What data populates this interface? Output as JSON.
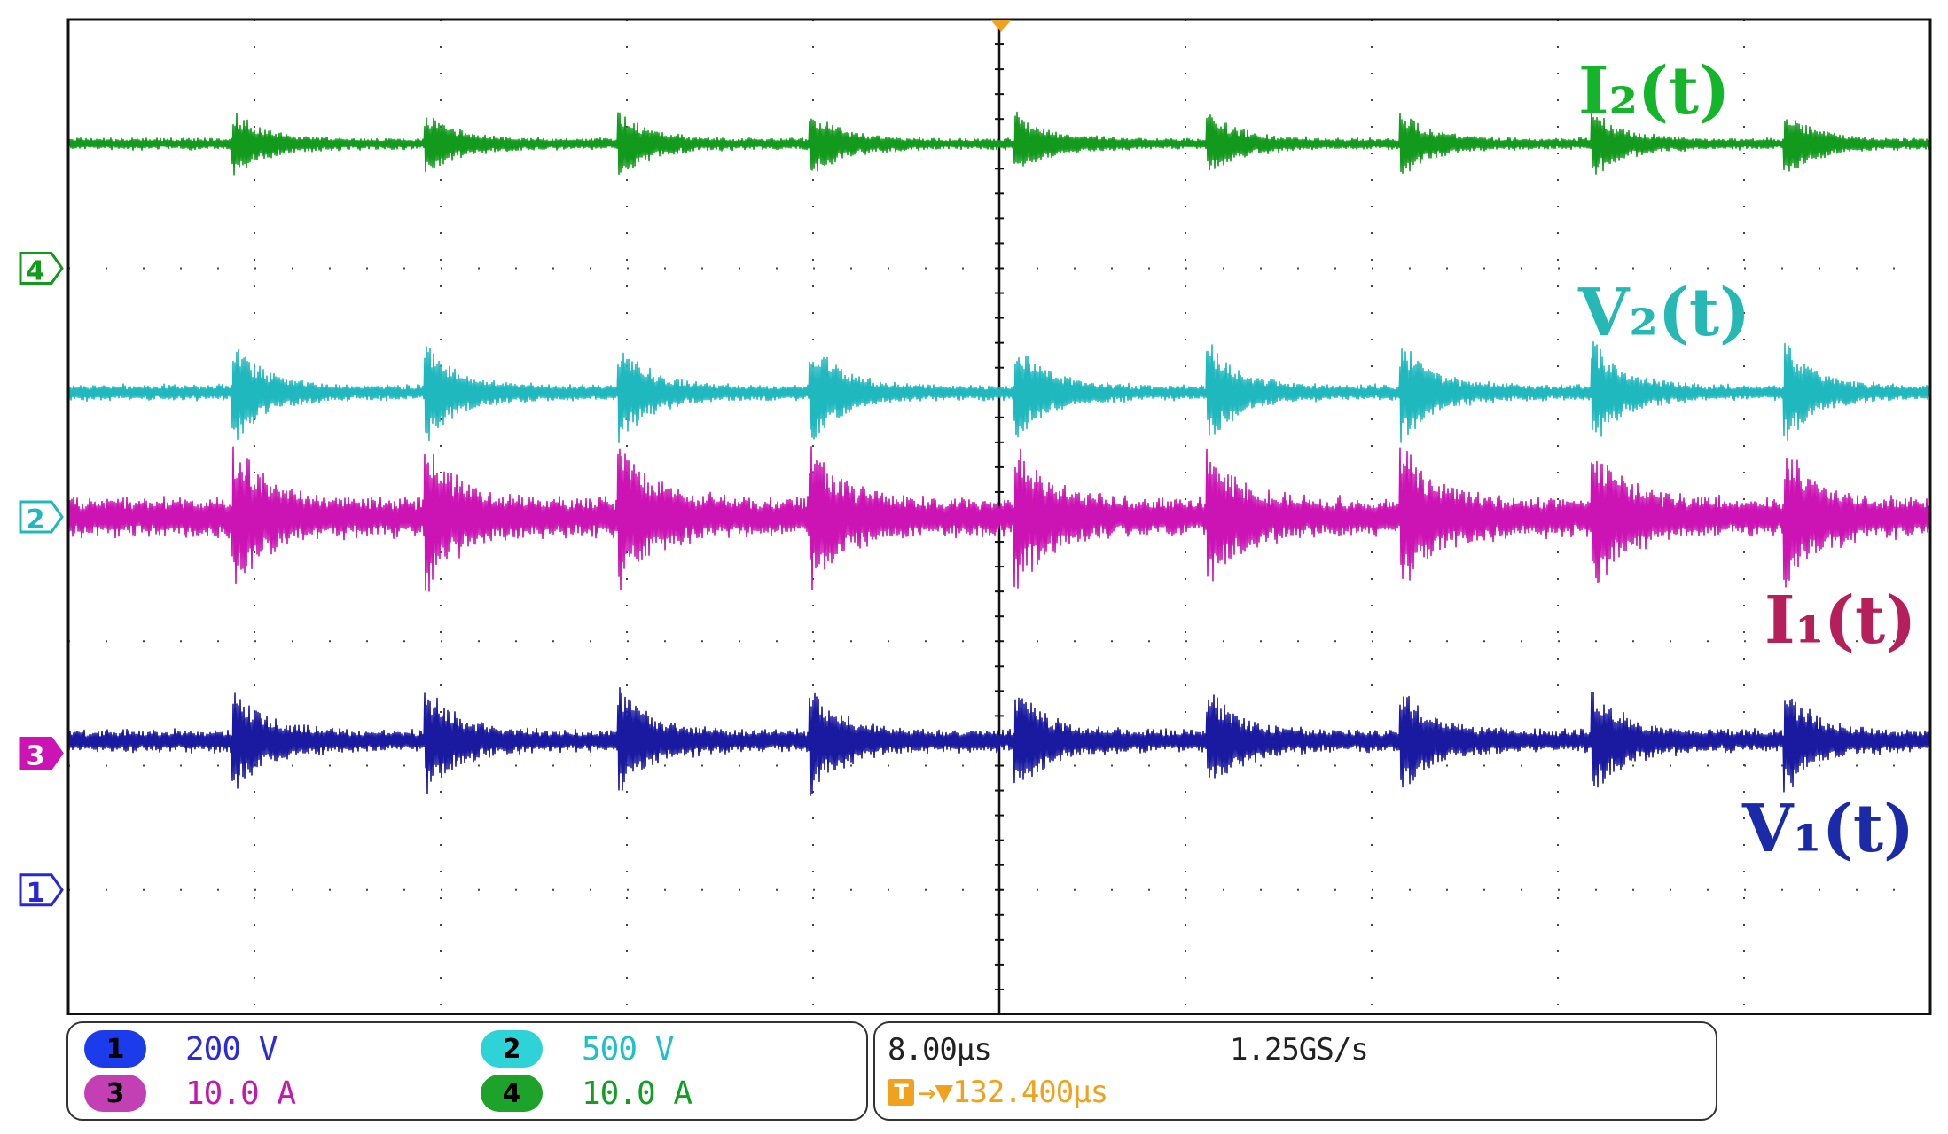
{
  "chart_data": {
    "type": "line",
    "title": "",
    "xlabel": "",
    "ylabel": "",
    "grid": true,
    "divisions": {
      "horizontal": 10,
      "vertical": 8
    },
    "series": [
      {
        "name": "I₂(t)",
        "channel": "4",
        "color": "#129a1c",
        "label_color": "#14b52a",
        "level_div": 3.0,
        "ripple_div": 0.05,
        "spike_div": 0.22
      },
      {
        "name": "V₂(t)",
        "channel": "2",
        "color": "#1fb8be",
        "label_color": "#25b8b5",
        "level_div": 1.0,
        "ripple_div": 0.07,
        "spike_div": 0.35
      },
      {
        "name": "I₁(t)",
        "channel": "3",
        "color": "#cc13b4",
        "label_color": "#b5205a",
        "level_div": 0.0,
        "ripple_div": 0.18,
        "spike_div": 0.45
      },
      {
        "name": "V₁(t)",
        "channel": "1",
        "color": "#1a1aa0",
        "label_color": "#1b2aa8",
        "level_div": -1.8,
        "ripple_div": 0.1,
        "spike_div": 0.35
      }
    ],
    "burst_times_div": [
      0.9,
      1.93,
      2.97,
      4.0,
      5.1,
      6.13,
      7.17,
      8.2,
      9.23
    ],
    "channel_markers": [
      {
        "id": "4",
        "color": "#129a1c",
        "level_div": 2.0
      },
      {
        "id": "2",
        "color": "#1fb8be",
        "level_div": 0.0
      },
      {
        "id": "3",
        "color": "#cc13b4",
        "level_div": -1.9
      },
      {
        "id": "1",
        "color": "#2727d6",
        "level_div": -3.0
      }
    ]
  },
  "channels": [
    {
      "id": "1",
      "scale": "200 V",
      "pill_color": "#1c3bea",
      "text_color": "#2b2bd8"
    },
    {
      "id": "2",
      "scale": "500 V",
      "pill_color": "#2ed3d8",
      "text_color": "#1fc0c6"
    },
    {
      "id": "3",
      "scale": "10.0 A",
      "pill_color": "#c23fb4",
      "text_color": "#c21ab0"
    },
    {
      "id": "4",
      "scale": "10.0 A",
      "pill_color": "#1ea32a",
      "text_color": "#13a022"
    }
  ],
  "timebase": {
    "time_per_div": "8.00µs",
    "sample_rate": "1.25GS/s",
    "trigger_icon": "T",
    "trigger_arrow": "→▼",
    "trigger_position": "132.400µs"
  },
  "colors": {
    "trigger": "#f0a21f",
    "grid": "#222222",
    "frame": "#111111"
  }
}
